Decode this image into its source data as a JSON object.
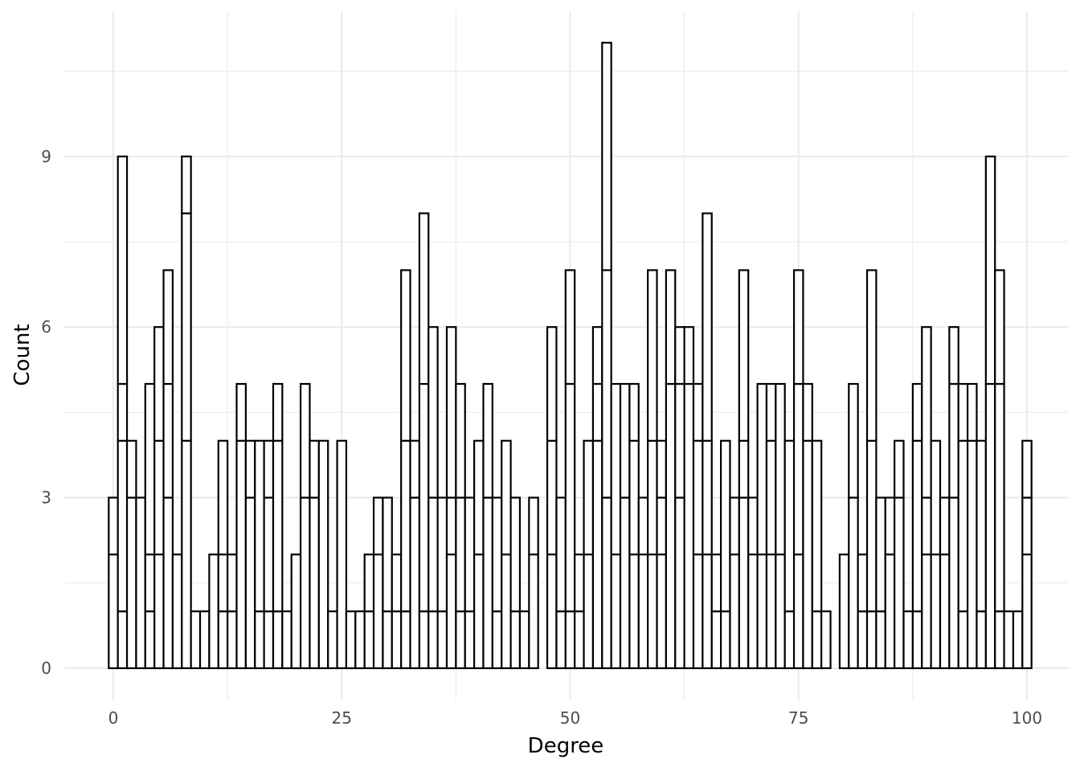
{
  "chart_data": {
    "type": "bar",
    "subtype": "stacked histogram, outlined segments, binwidth 1",
    "xlabel": "Degree",
    "ylabel": "Count",
    "xlim": [
      -5,
      104
    ],
    "ylim": [
      -0.5,
      11.5
    ],
    "x_ticks": [
      0,
      25,
      50,
      75,
      100
    ],
    "y_ticks": [
      0,
      3,
      6,
      9
    ],
    "grid": true,
    "legend": "none",
    "colors": {
      "fill": "#ffffff",
      "outline": "#000000",
      "grid": "#ebebeb",
      "text": "#4d4d4d"
    },
    "bins": [
      {
        "x": 0,
        "breaks": [
          2,
          3
        ]
      },
      {
        "x": 1,
        "breaks": [
          1,
          4,
          5,
          9
        ]
      },
      {
        "x": 2,
        "breaks": [
          3,
          4
        ]
      },
      {
        "x": 3,
        "breaks": [
          3
        ]
      },
      {
        "x": 4,
        "breaks": [
          1,
          2,
          5
        ]
      },
      {
        "x": 5,
        "breaks": [
          2,
          4,
          6
        ]
      },
      {
        "x": 6,
        "breaks": [
          3,
          5,
          7
        ]
      },
      {
        "x": 7,
        "breaks": [
          2
        ]
      },
      {
        "x": 8,
        "breaks": [
          4,
          8,
          9
        ]
      },
      {
        "x": 9,
        "breaks": [
          1
        ]
      },
      {
        "x": 10,
        "breaks": [
          1
        ]
      },
      {
        "x": 11,
        "breaks": [
          2
        ]
      },
      {
        "x": 12,
        "breaks": [
          1,
          2,
          4
        ]
      },
      {
        "x": 13,
        "breaks": [
          1,
          2
        ]
      },
      {
        "x": 14,
        "breaks": [
          4,
          5
        ]
      },
      {
        "x": 15,
        "breaks": [
          3,
          4
        ]
      },
      {
        "x": 16,
        "breaks": [
          1,
          4
        ]
      },
      {
        "x": 17,
        "breaks": [
          1,
          3,
          4
        ]
      },
      {
        "x": 18,
        "breaks": [
          1,
          4,
          5
        ]
      },
      {
        "x": 19,
        "breaks": [
          1
        ]
      },
      {
        "x": 20,
        "breaks": [
          2
        ]
      },
      {
        "x": 21,
        "breaks": [
          3,
          5
        ]
      },
      {
        "x": 22,
        "breaks": [
          3,
          4
        ]
      },
      {
        "x": 23,
        "breaks": [
          4
        ]
      },
      {
        "x": 24,
        "breaks": [
          1
        ]
      },
      {
        "x": 25,
        "breaks": [
          4
        ]
      },
      {
        "x": 26,
        "breaks": [
          1
        ]
      },
      {
        "x": 27,
        "breaks": [
          1
        ]
      },
      {
        "x": 28,
        "breaks": [
          1,
          2
        ]
      },
      {
        "x": 29,
        "breaks": [
          2,
          3
        ]
      },
      {
        "x": 30,
        "breaks": [
          1,
          3
        ]
      },
      {
        "x": 31,
        "breaks": [
          1,
          2
        ]
      },
      {
        "x": 32,
        "breaks": [
          1,
          4,
          7
        ]
      },
      {
        "x": 33,
        "breaks": [
          3,
          4
        ]
      },
      {
        "x": 34,
        "breaks": [
          1,
          5,
          8
        ]
      },
      {
        "x": 35,
        "breaks": [
          1,
          3,
          6
        ]
      },
      {
        "x": 36,
        "breaks": [
          1,
          3
        ]
      },
      {
        "x": 37,
        "breaks": [
          2,
          3,
          6
        ]
      },
      {
        "x": 38,
        "breaks": [
          1,
          3,
          5
        ]
      },
      {
        "x": 39,
        "breaks": [
          1,
          3
        ]
      },
      {
        "x": 40,
        "breaks": [
          2,
          4
        ]
      },
      {
        "x": 41,
        "breaks": [
          3,
          5
        ]
      },
      {
        "x": 42,
        "breaks": [
          1,
          3
        ]
      },
      {
        "x": 43,
        "breaks": [
          2,
          4
        ]
      },
      {
        "x": 44,
        "breaks": [
          1,
          3
        ]
      },
      {
        "x": 45,
        "breaks": [
          1
        ]
      },
      {
        "x": 46,
        "breaks": [
          2,
          3
        ]
      },
      {
        "x": 48,
        "breaks": [
          2,
          4,
          6
        ]
      },
      {
        "x": 49,
        "breaks": [
          1,
          3
        ]
      },
      {
        "x": 50,
        "breaks": [
          1,
          5,
          7
        ]
      },
      {
        "x": 51,
        "breaks": [
          1,
          2
        ]
      },
      {
        "x": 52,
        "breaks": [
          2,
          4
        ]
      },
      {
        "x": 53,
        "breaks": [
          4,
          5,
          6
        ]
      },
      {
        "x": 54,
        "breaks": [
          3,
          7,
          11
        ]
      },
      {
        "x": 55,
        "breaks": [
          2,
          5
        ]
      },
      {
        "x": 56,
        "breaks": [
          3,
          5
        ]
      },
      {
        "x": 57,
        "breaks": [
          2,
          4,
          5
        ]
      },
      {
        "x": 58,
        "breaks": [
          2,
          3
        ]
      },
      {
        "x": 59,
        "breaks": [
          2,
          4,
          7
        ]
      },
      {
        "x": 60,
        "breaks": [
          2,
          3,
          4
        ]
      },
      {
        "x": 61,
        "breaks": [
          5,
          7
        ]
      },
      {
        "x": 62,
        "breaks": [
          3,
          5,
          6
        ]
      },
      {
        "x": 63,
        "breaks": [
          5,
          6
        ]
      },
      {
        "x": 64,
        "breaks": [
          2,
          4,
          5
        ]
      },
      {
        "x": 65,
        "breaks": [
          2,
          4,
          8
        ]
      },
      {
        "x": 66,
        "breaks": [
          1,
          2
        ]
      },
      {
        "x": 67,
        "breaks": [
          1,
          4
        ]
      },
      {
        "x": 68,
        "breaks": [
          2,
          3
        ]
      },
      {
        "x": 69,
        "breaks": [
          3,
          4,
          7
        ]
      },
      {
        "x": 70,
        "breaks": [
          2,
          3
        ]
      },
      {
        "x": 71,
        "breaks": [
          2,
          5
        ]
      },
      {
        "x": 72,
        "breaks": [
          2,
          4,
          5
        ]
      },
      {
        "x": 73,
        "breaks": [
          2,
          5
        ]
      },
      {
        "x": 74,
        "breaks": [
          1,
          4
        ]
      },
      {
        "x": 75,
        "breaks": [
          2,
          5,
          7
        ]
      },
      {
        "x": 76,
        "breaks": [
          4,
          5
        ]
      },
      {
        "x": 77,
        "breaks": [
          1,
          4
        ]
      },
      {
        "x": 78,
        "breaks": [
          1
        ]
      },
      {
        "x": 80,
        "breaks": [
          2
        ]
      },
      {
        "x": 81,
        "breaks": [
          3,
          5
        ]
      },
      {
        "x": 82,
        "breaks": [
          1,
          2
        ]
      },
      {
        "x": 83,
        "breaks": [
          1,
          4,
          7
        ]
      },
      {
        "x": 84,
        "breaks": [
          1,
          3
        ]
      },
      {
        "x": 85,
        "breaks": [
          2,
          3
        ]
      },
      {
        "x": 86,
        "breaks": [
          3,
          4
        ]
      },
      {
        "x": 87,
        "breaks": [
          1
        ]
      },
      {
        "x": 88,
        "breaks": [
          1,
          4,
          5
        ]
      },
      {
        "x": 89,
        "breaks": [
          2,
          3,
          6
        ]
      },
      {
        "x": 90,
        "breaks": [
          2,
          4
        ]
      },
      {
        "x": 91,
        "breaks": [
          2,
          3
        ]
      },
      {
        "x": 92,
        "breaks": [
          3,
          5,
          6
        ]
      },
      {
        "x": 93,
        "breaks": [
          1,
          4,
          5
        ]
      },
      {
        "x": 94,
        "breaks": [
          4,
          5
        ]
      },
      {
        "x": 95,
        "breaks": [
          1,
          4
        ]
      },
      {
        "x": 96,
        "breaks": [
          5,
          9
        ]
      },
      {
        "x": 97,
        "breaks": [
          1,
          5,
          7
        ]
      },
      {
        "x": 98,
        "breaks": [
          1
        ]
      },
      {
        "x": 99,
        "breaks": [
          1
        ]
      },
      {
        "x": 100,
        "breaks": [
          2,
          3,
          4
        ]
      }
    ]
  }
}
